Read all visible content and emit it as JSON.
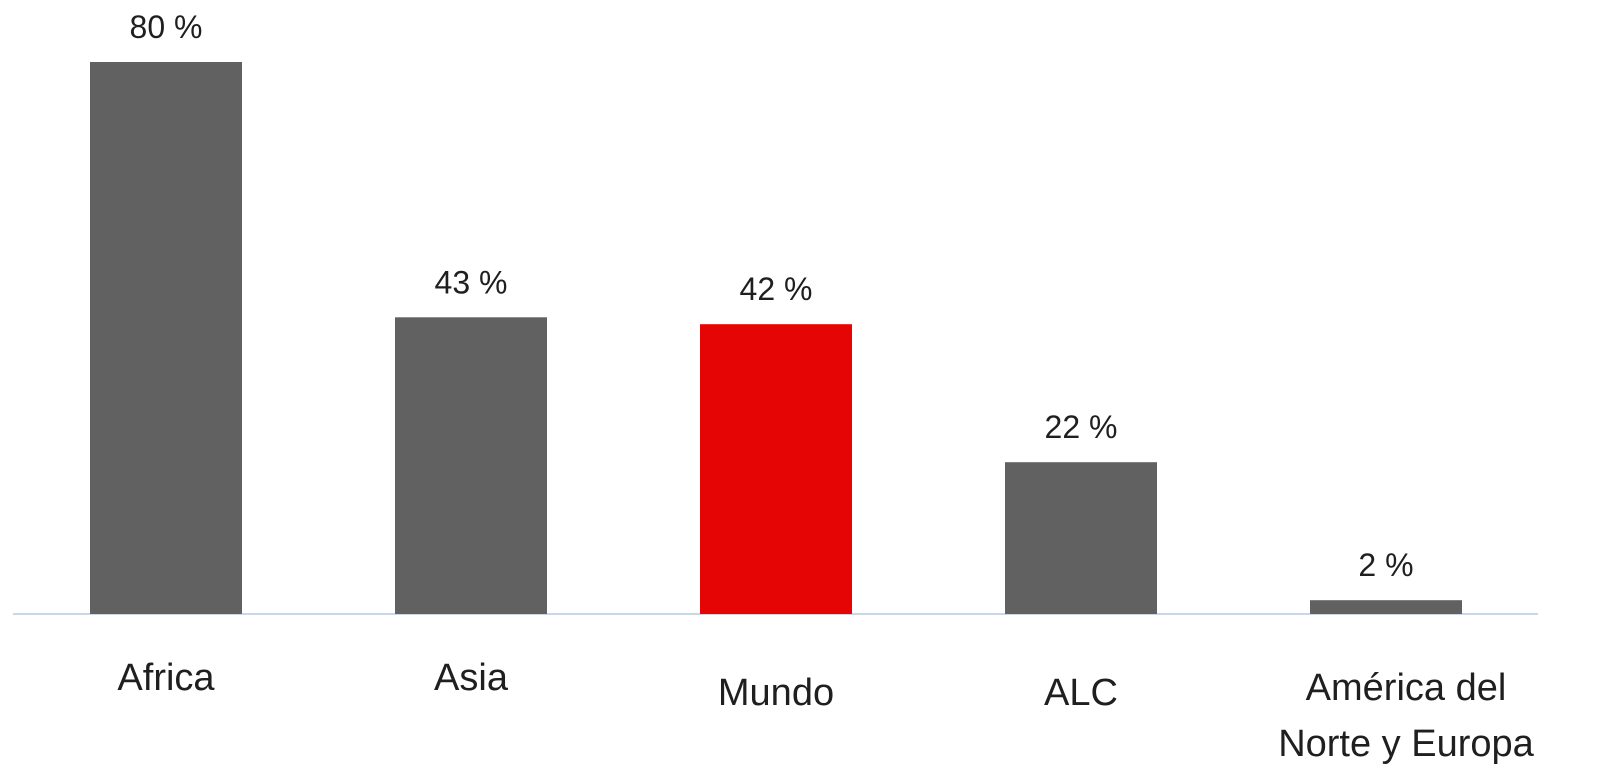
{
  "chart_data": {
    "type": "bar",
    "categories": [
      "Africa",
      "Asia",
      "Mundo",
      "ALC",
      "América del Norte y Europa"
    ],
    "values": [
      80,
      43,
      42,
      22,
      2
    ],
    "value_labels": [
      "80 %",
      "43 %",
      "42 %",
      "22 %",
      "2 %"
    ],
    "colors": [
      "#616161",
      "#616161",
      "#e60505",
      "#616161",
      "#616161"
    ]
  }
}
